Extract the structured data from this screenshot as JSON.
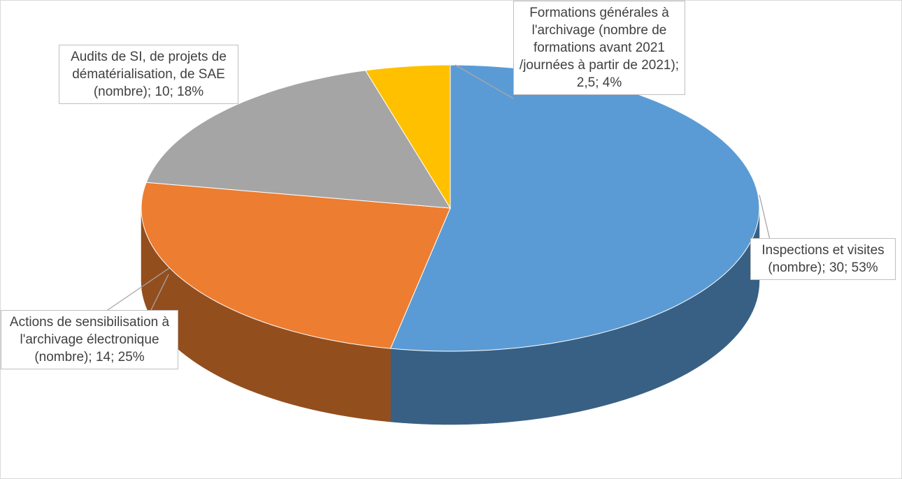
{
  "chart_data": {
    "type": "pie3d",
    "categories": [
      "Inspections et visites (nombre)",
      "Actions de sensibilisation à l'archivage électronique (nombre)",
      "Audits de SI, de projets de dématérialisation, de SAE (nombre)",
      "Formations générales à l'archivage (nombre de formations avant 2021 /journées à partir de 2021)"
    ],
    "values": [
      30,
      14,
      10,
      2.5
    ],
    "value_labels": [
      "30",
      "14",
      "10",
      "2,5"
    ],
    "percents": [
      53,
      25,
      18,
      4
    ],
    "percent_labels": [
      "53%",
      "25%",
      "18%",
      "4%"
    ],
    "label_separator": "; ",
    "colors": [
      "#5b9bd5",
      "#ed7d31",
      "#a5a5a5",
      "#ffc000"
    ]
  }
}
